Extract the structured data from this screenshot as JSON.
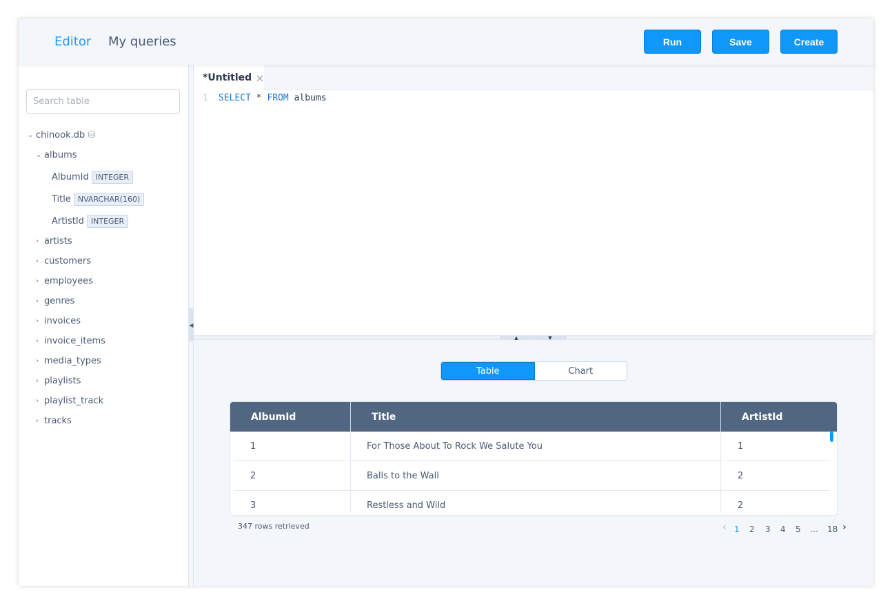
{
  "header": {
    "nav": [
      {
        "label": "Editor",
        "active": true
      },
      {
        "label": "My queries",
        "active": false
      }
    ],
    "buttons": {
      "run": "Run",
      "save": "Save",
      "create": "Create"
    }
  },
  "sidebar": {
    "search_placeholder": "Search table",
    "database": "chinook.db",
    "tables": [
      {
        "name": "albums",
        "expanded": true,
        "columns": [
          {
            "name": "AlbumId",
            "type": "INTEGER"
          },
          {
            "name": "Title",
            "type": "NVARCHAR(160)"
          },
          {
            "name": "ArtistId",
            "type": "INTEGER"
          }
        ]
      },
      {
        "name": "artists"
      },
      {
        "name": "customers"
      },
      {
        "name": "employees"
      },
      {
        "name": "genres"
      },
      {
        "name": "invoices"
      },
      {
        "name": "invoice_items"
      },
      {
        "name": "media_types"
      },
      {
        "name": "playlists"
      },
      {
        "name": "playlist_track"
      },
      {
        "name": "tracks"
      }
    ]
  },
  "editor": {
    "tab": "*Untitled",
    "close": "×",
    "line": "1",
    "code": {
      "kw1": "SELECT",
      "star": " * ",
      "kw2": "FROM",
      "rest": " albums"
    }
  },
  "results": {
    "view_toggle": {
      "table": "Table",
      "chart": "Chart",
      "selected": "Table"
    },
    "columns": [
      "AlbumId",
      "Title",
      "ArtistId"
    ],
    "rows": [
      [
        "1",
        "For Those About To Rock We Salute You",
        "1"
      ],
      [
        "2",
        "Balls to the Wall",
        "2"
      ],
      [
        "3",
        "Restless and Wild",
        "2"
      ]
    ],
    "status": "347 rows retrieved",
    "pagination": {
      "prev": "‹",
      "pages": [
        "1",
        "2",
        "3",
        "4",
        "5",
        "…",
        "18"
      ],
      "current": "1",
      "next": "›"
    }
  },
  "colors": {
    "accent": "#0f97fa",
    "table_header": "#506681"
  }
}
